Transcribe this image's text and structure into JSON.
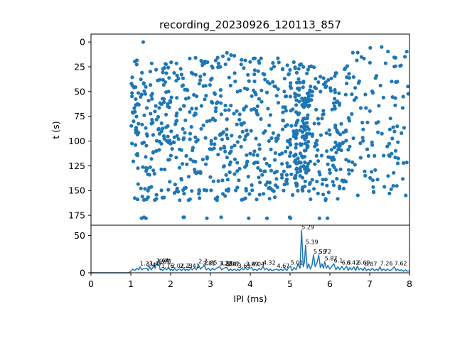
{
  "chart_data": [
    {
      "type": "scatter",
      "title": "recording_20230926_120113_857",
      "xlabel": "",
      "ylabel": "t (s)",
      "xlim": [
        0,
        8
      ],
      "ylim": [
        185,
        -8
      ],
      "y_inverted": true,
      "x_shared_with_lower_panel": true,
      "yticks": [
        "0",
        "25",
        "50",
        "75",
        "100",
        "125",
        "150",
        "175"
      ],
      "ytick_values": [
        0,
        25,
        50,
        75,
        100,
        125,
        150,
        175
      ],
      "color": "#1f77b4",
      "marker": "circle",
      "point_density": [
        {
          "x_range": [
            1.0,
            1.8
          ],
          "t_range": [
            18,
            160
          ],
          "count": 120
        },
        {
          "x_range": [
            1.8,
            2.8
          ],
          "t_range": [
            15,
            160
          ],
          "count": 140
        },
        {
          "x_range": [
            2.8,
            3.8
          ],
          "t_range": [
            10,
            160
          ],
          "count": 130
        },
        {
          "x_range": [
            3.8,
            4.8
          ],
          "t_range": [
            15,
            160
          ],
          "count": 130
        },
        {
          "x_range": [
            4.8,
            5.5
          ],
          "t_range": [
            20,
            155
          ],
          "count": 110
        },
        {
          "x_range": [
            5.1,
            5.5
          ],
          "t_range": [
            50,
            155
          ],
          "count": 90
        },
        {
          "x_range": [
            5.5,
            6.5
          ],
          "t_range": [
            15,
            160
          ],
          "count": 140
        },
        {
          "x_range": [
            6.5,
            8.0
          ],
          "t_range": [
            5,
            155
          ],
          "count": 110
        }
      ],
      "isolated_points": [
        {
          "x": 1.31,
          "t": 0
        },
        {
          "x": 7.3,
          "t": 5
        },
        {
          "x": 1.33,
          "t": 177
        },
        {
          "x": 1.38,
          "t": 178
        },
        {
          "x": 1.27,
          "t": 178
        },
        {
          "x": 2.32,
          "t": 177
        },
        {
          "x": 2.34,
          "t": 177
        },
        {
          "x": 2.91,
          "t": 178
        },
        {
          "x": 3.27,
          "t": 177
        },
        {
          "x": 3.96,
          "t": 178
        },
        {
          "x": 4.42,
          "t": 178
        },
        {
          "x": 4.99,
          "t": 177
        },
        {
          "x": 5.01,
          "t": 178
        },
        {
          "x": 5.74,
          "t": 178
        },
        {
          "x": 5.94,
          "t": 178
        }
      ]
    },
    {
      "type": "line",
      "title": "",
      "xlabel": "IPI (ms)",
      "ylabel": "",
      "xlim": [
        0,
        8
      ],
      "ylim": [
        0,
        64
      ],
      "xticks": [
        "0",
        "1",
        "2",
        "3",
        "4",
        "5",
        "6",
        "7",
        "8"
      ],
      "xtick_values": [
        0,
        1,
        2,
        3,
        4,
        5,
        6,
        7,
        8
      ],
      "yticks": [
        "0",
        "50"
      ],
      "ytick_values": [
        0,
        50
      ],
      "color": "#1f77b4",
      "peaks": [
        {
          "x": 1.23,
          "y": 8,
          "label": "1.23"
        },
        {
          "x": 1.4,
          "y": 6,
          "label": "1.4"
        },
        {
          "x": 1.47,
          "y": 8,
          "label": "1.47"
        },
        {
          "x": 1.64,
          "y": 12,
          "label": "1.64"
        },
        {
          "x": 1.67,
          "y": 10,
          "label": "1.67"
        },
        {
          "x": 1.71,
          "y": 11,
          "label": "1.71"
        },
        {
          "x": 1.76,
          "y": 5,
          "label": "1.76"
        },
        {
          "x": 2.02,
          "y": 5,
          "label": "2.02"
        },
        {
          "x": 2.23,
          "y": 5,
          "label": "2.23"
        },
        {
          "x": 2.41,
          "y": 5,
          "label": "2.41"
        },
        {
          "x": 2.7,
          "y": 11,
          "label": "2.7"
        },
        {
          "x": 2.81,
          "y": 8,
          "label": "2.81"
        },
        {
          "x": 2.85,
          "y": 9,
          "label": "2.85"
        },
        {
          "x": 3.22,
          "y": 8,
          "label": "3.22"
        },
        {
          "x": 3.24,
          "y": 8,
          "label": "3.24"
        },
        {
          "x": 3.38,
          "y": 7,
          "label": "3.38"
        },
        {
          "x": 3.42,
          "y": 7,
          "label": "3.42"
        },
        {
          "x": 3.69,
          "y": 5,
          "label": "3.69"
        },
        {
          "x": 3.89,
          "y": 7,
          "label": "3.89"
        },
        {
          "x": 4.04,
          "y": 7,
          "label": "4.04"
        },
        {
          "x": 4.32,
          "y": 9,
          "label": "4.32"
        },
        {
          "x": 4.67,
          "y": 5,
          "label": "4.67"
        },
        {
          "x": 5.01,
          "y": 9,
          "label": "5.01"
        },
        {
          "x": 5.29,
          "y": 57,
          "label": "5.29"
        },
        {
          "x": 5.39,
          "y": 37,
          "label": "5.39"
        },
        {
          "x": 5.59,
          "y": 24,
          "label": "5.59"
        },
        {
          "x": 5.72,
          "y": 24,
          "label": "5.72"
        },
        {
          "x": 5.87,
          "y": 15,
          "label": "5.87"
        },
        {
          "x": 6.1,
          "y": 12,
          "label": "6.1"
        },
        {
          "x": 6.3,
          "y": 9,
          "label": "6.3"
        },
        {
          "x": 6.42,
          "y": 9,
          "label": "6.42"
        },
        {
          "x": 6.69,
          "y": 9,
          "label": "6.69"
        },
        {
          "x": 6.87,
          "y": 7,
          "label": "6.87"
        },
        {
          "x": 7.26,
          "y": 8,
          "label": "7.26"
        },
        {
          "x": 7.62,
          "y": 8,
          "label": "7.62"
        }
      ],
      "curve": [
        [
          0,
          0
        ],
        [
          0.9,
          0
        ],
        [
          0.95,
          0
        ],
        [
          1.0,
          2
        ],
        [
          1.05,
          5
        ],
        [
          1.1,
          3
        ],
        [
          1.15,
          6
        ],
        [
          1.2,
          4
        ],
        [
          1.23,
          8
        ],
        [
          1.28,
          4
        ],
        [
          1.33,
          6
        ],
        [
          1.4,
          6
        ],
        [
          1.44,
          3
        ],
        [
          1.47,
          8
        ],
        [
          1.52,
          4
        ],
        [
          1.57,
          9
        ],
        [
          1.61,
          6
        ],
        [
          1.64,
          12
        ],
        [
          1.67,
          10
        ],
        [
          1.71,
          11
        ],
        [
          1.74,
          4
        ],
        [
          1.76,
          5
        ],
        [
          1.8,
          3
        ],
        [
          1.85,
          6
        ],
        [
          1.9,
          4
        ],
        [
          1.95,
          7
        ],
        [
          2.0,
          3
        ],
        [
          2.02,
          5
        ],
        [
          2.06,
          3
        ],
        [
          2.1,
          6
        ],
        [
          2.15,
          3
        ],
        [
          2.2,
          5
        ],
        [
          2.23,
          5
        ],
        [
          2.28,
          3
        ],
        [
          2.33,
          6
        ],
        [
          2.37,
          3
        ],
        [
          2.41,
          5
        ],
        [
          2.45,
          3
        ],
        [
          2.5,
          6
        ],
        [
          2.55,
          4
        ],
        [
          2.6,
          7
        ],
        [
          2.65,
          4
        ],
        [
          2.7,
          11
        ],
        [
          2.75,
          5
        ],
        [
          2.81,
          8
        ],
        [
          2.85,
          9
        ],
        [
          2.9,
          4
        ],
        [
          2.95,
          6
        ],
        [
          3.0,
          3
        ],
        [
          3.05,
          6
        ],
        [
          3.1,
          4
        ],
        [
          3.15,
          6
        ],
        [
          3.22,
          8
        ],
        [
          3.24,
          8
        ],
        [
          3.28,
          4
        ],
        [
          3.33,
          6
        ],
        [
          3.38,
          7
        ],
        [
          3.42,
          7
        ],
        [
          3.46,
          3
        ],
        [
          3.5,
          5
        ],
        [
          3.55,
          3
        ],
        [
          3.6,
          5
        ],
        [
          3.65,
          3
        ],
        [
          3.69,
          5
        ],
        [
          3.73,
          3
        ],
        [
          3.78,
          6
        ],
        [
          3.83,
          4
        ],
        [
          3.89,
          7
        ],
        [
          3.93,
          4
        ],
        [
          3.98,
          6
        ],
        [
          4.04,
          7
        ],
        [
          4.08,
          3
        ],
        [
          4.12,
          5
        ],
        [
          4.17,
          3
        ],
        [
          4.22,
          6
        ],
        [
          4.27,
          4
        ],
        [
          4.32,
          9
        ],
        [
          4.36,
          4
        ],
        [
          4.41,
          6
        ],
        [
          4.46,
          3
        ],
        [
          4.5,
          5
        ],
        [
          4.55,
          3
        ],
        [
          4.6,
          4
        ],
        [
          4.67,
          5
        ],
        [
          4.72,
          3
        ],
        [
          4.77,
          5
        ],
        [
          4.82,
          3
        ],
        [
          4.87,
          6
        ],
        [
          4.92,
          3
        ],
        [
          4.96,
          7
        ],
        [
          5.01,
          9
        ],
        [
          5.05,
          3
        ],
        [
          5.1,
          7
        ],
        [
          5.15,
          4
        ],
        [
          5.2,
          12
        ],
        [
          5.25,
          6
        ],
        [
          5.29,
          57
        ],
        [
          5.33,
          8
        ],
        [
          5.36,
          14
        ],
        [
          5.39,
          37
        ],
        [
          5.43,
          6
        ],
        [
          5.47,
          12
        ],
        [
          5.51,
          5
        ],
        [
          5.55,
          10
        ],
        [
          5.59,
          24
        ],
        [
          5.63,
          8
        ],
        [
          5.68,
          14
        ],
        [
          5.72,
          24
        ],
        [
          5.76,
          7
        ],
        [
          5.8,
          12
        ],
        [
          5.84,
          6
        ],
        [
          5.87,
          15
        ],
        [
          5.91,
          6
        ],
        [
          5.95,
          10
        ],
        [
          6.0,
          5
        ],
        [
          6.05,
          9
        ],
        [
          6.1,
          12
        ],
        [
          6.15,
          4
        ],
        [
          6.2,
          8
        ],
        [
          6.25,
          4
        ],
        [
          6.3,
          9
        ],
        [
          6.35,
          4
        ],
        [
          6.42,
          9
        ],
        [
          6.46,
          3
        ],
        [
          6.5,
          7
        ],
        [
          6.55,
          4
        ],
        [
          6.6,
          8
        ],
        [
          6.65,
          3
        ],
        [
          6.69,
          9
        ],
        [
          6.73,
          4
        ],
        [
          6.78,
          6
        ],
        [
          6.83,
          3
        ],
        [
          6.87,
          7
        ],
        [
          6.92,
          3
        ],
        [
          6.97,
          5
        ],
        [
          7.02,
          3
        ],
        [
          7.07,
          6
        ],
        [
          7.12,
          3
        ],
        [
          7.17,
          5
        ],
        [
          7.21,
          3
        ],
        [
          7.26,
          8
        ],
        [
          7.3,
          3
        ],
        [
          7.35,
          5
        ],
        [
          7.4,
          3
        ],
        [
          7.45,
          5
        ],
        [
          7.5,
          3
        ],
        [
          7.55,
          4
        ],
        [
          7.62,
          8
        ],
        [
          7.66,
          3
        ],
        [
          7.7,
          5
        ],
        [
          7.75,
          3
        ],
        [
          7.8,
          4
        ],
        [
          7.85,
          2
        ],
        [
          7.9,
          4
        ],
        [
          7.95,
          2
        ],
        [
          8.0,
          3
        ]
      ]
    }
  ]
}
